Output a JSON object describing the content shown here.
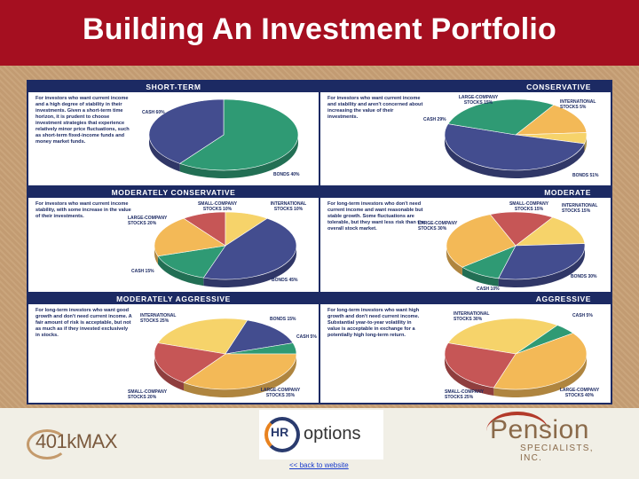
{
  "title": "Building An Investment Portfolio",
  "colors": {
    "cash": "#2f9a74",
    "bonds": "#434d8f",
    "large": "#f3b957",
    "intl": "#f6d36a",
    "small": "#c65656",
    "banner": "#a50f20",
    "navy": "#1c2a63"
  },
  "panels": [
    {
      "heading": "SHORT-TERM",
      "description": "For investors who want current income and a high degree of stability in their investments. Given a short-term time horizon, it is prudent to choose investment strategies that experience relatively minor price fluctuations, such as short-term fixed-income funds and money market funds.",
      "labels": {
        "cash": "CASH 60%",
        "bonds": "BONDS 40%"
      }
    },
    {
      "heading": "CONSERVATIVE",
      "description": "For investors who want current income and stability and aren't concerned about increasing the value of their investments.",
      "labels": {
        "large": "LARGE-COMPANY STOCKS 15%",
        "intl": "INTERNATIONAL STOCKS 5%",
        "cash": "CASH 29%",
        "bonds": "BONDS 51%"
      }
    },
    {
      "heading": "MODERATELY CONSERVATIVE",
      "description": "For investors who want current income stability, with some increase in the value of their investments.",
      "labels": {
        "small": "SMALL-COMPANY STOCKS 10%",
        "intl": "INTERNATIONAL STOCKS 10%",
        "large": "LARGE-COMPANY STOCKS 20%",
        "cash": "CASH 15%",
        "bonds": "BONDS 45%"
      }
    },
    {
      "heading": "MODERATE",
      "description": "For long-term investors who don't need current income and want reasonable but stable growth. Some fluctuations are tolerable, but they want less risk than the overall stock market.",
      "labels": {
        "small": "SMALL-COMPANY STOCKS 15%",
        "intl": "INTERNATIONAL STOCKS 15%",
        "large": "LARGE-COMPANY STOCKS 30%",
        "bonds": "BONDS 30%",
        "cash": "CASH 10%"
      }
    },
    {
      "heading": "MODERATELY AGGRESSIVE",
      "description": "For long-term investors who want good growth and don't need current income. A fair amount of risk is acceptable, but not as much as if they invested exclusively in stocks.",
      "labels": {
        "intl": "INTERNATIONAL STOCKS 25%",
        "bonds": "BONDS 15%",
        "cash": "CASH 5%",
        "small": "SMALL-COMPANY STOCKS 20%",
        "large": "LARGE-COMPANY STOCKS 35%"
      }
    },
    {
      "heading": "AGGRESSIVE",
      "description": "For long-term investors who want high growth and don't need current income. Substantial year-to-year volatility in value is acceptable in exchange for a potentially high long-term return.",
      "labels": {
        "intl": "INTERNATIONAL STOCKS 30%",
        "cash": "CASH 5%",
        "small": "SMALL-COMPANY STOCKS 25%",
        "large": "LARGE-COMPANY STOCKS 40%"
      }
    }
  ],
  "chart_data": [
    {
      "type": "pie",
      "title": "SHORT-TERM",
      "labels": [
        "CASH",
        "BONDS"
      ],
      "values": [
        60,
        40
      ]
    },
    {
      "type": "pie",
      "title": "CONSERVATIVE",
      "labels": [
        "LARGE-COMPANY STOCKS",
        "INTERNATIONAL STOCKS",
        "BONDS",
        "CASH"
      ],
      "values": [
        15,
        5,
        51,
        29
      ]
    },
    {
      "type": "pie",
      "title": "MODERATELY CONSERVATIVE",
      "labels": [
        "SMALL-COMPANY STOCKS",
        "INTERNATIONAL STOCKS",
        "BONDS",
        "CASH",
        "LARGE-COMPANY STOCKS"
      ],
      "values": [
        10,
        10,
        45,
        15,
        20
      ]
    },
    {
      "type": "pie",
      "title": "MODERATE",
      "labels": [
        "SMALL-COMPANY STOCKS",
        "INTERNATIONAL STOCKS",
        "BONDS",
        "CASH",
        "LARGE-COMPANY STOCKS"
      ],
      "values": [
        15,
        15,
        30,
        10,
        30
      ]
    },
    {
      "type": "pie",
      "title": "MODERATELY AGGRESSIVE",
      "labels": [
        "INTERNATIONAL STOCKS",
        "BONDS",
        "CASH",
        "LARGE-COMPANY STOCKS",
        "SMALL-COMPANY STOCKS"
      ],
      "values": [
        25,
        15,
        5,
        35,
        20
      ]
    },
    {
      "type": "pie",
      "title": "AGGRESSIVE",
      "labels": [
        "INTERNATIONAL STOCKS",
        "CASH",
        "LARGE-COMPANY STOCKS",
        "SMALL-COMPANY STOCKS"
      ],
      "values": [
        30,
        5,
        40,
        25
      ]
    }
  ],
  "footer": {
    "logo_401k": "401kMAX",
    "hr_logo": {
      "hr": "HR",
      "options": "options"
    },
    "back_link": "<< back to website",
    "pension_logo": {
      "name": "Pension",
      "sub": "SPECIALISTS, INC."
    }
  }
}
